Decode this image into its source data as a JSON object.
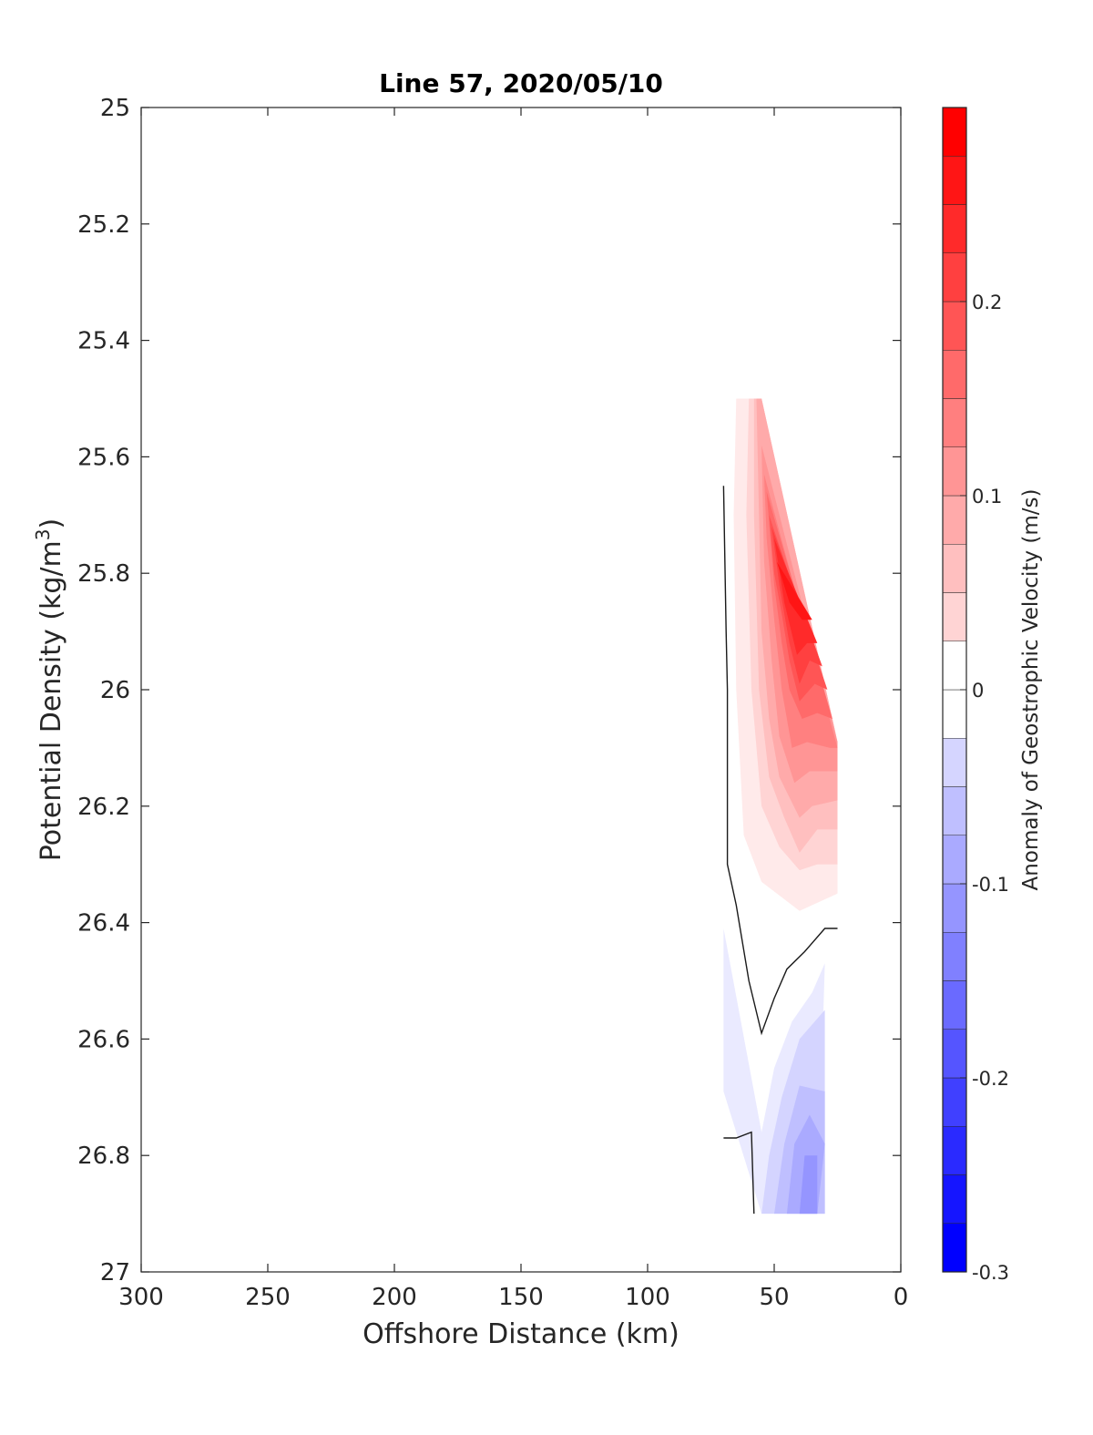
{
  "chart_data": {
    "type": "contourf",
    "title": "Line 57, 2020/05/10",
    "xlabel": "Offshore Distance (km)",
    "ylabel": "Potential Density (kg/m",
    "ylabel_sup": "3",
    "ylabel_tail": ")",
    "xlim": [
      300,
      0
    ],
    "x_reversed": true,
    "ylim": [
      25,
      27
    ],
    "y_reversed": true,
    "xticks": [
      300,
      250,
      200,
      150,
      100,
      50,
      0
    ],
    "xtick_labels": [
      "300",
      "250",
      "200",
      "150",
      "100",
      "50",
      "0"
    ],
    "yticks": [
      25,
      25.2,
      25.4,
      25.6,
      25.8,
      26,
      26.2,
      26.4,
      26.6,
      26.8,
      27
    ],
    "ytick_labels": [
      "25",
      "25.2",
      "25.4",
      "25.6",
      "25.8",
      "26",
      "26.2",
      "26.4",
      "26.6",
      "26.8",
      "27"
    ],
    "grid": false,
    "colorbar": {
      "label": "Anomaly of Geostrophic Velocity (m/s)",
      "range": [
        -0.3,
        0.3
      ],
      "level_step": 0.025,
      "ticks": [
        -0.3,
        -0.2,
        -0.1,
        0,
        0.1,
        0.2
      ],
      "tick_labels": [
        "-0.3",
        "-0.2",
        "-0.1",
        "0",
        "0.1",
        "0.2"
      ],
      "colormap": "blue-white-red",
      "negative_color": "#0000ff",
      "positive_color": "#ff0000",
      "zero_color": "#ffffff"
    },
    "positive_region": {
      "description_values": "layers of anomaly from 0 to about 0.28 m/s",
      "layers": [
        {
          "level": 0.025,
          "polygon": [
            [
              63,
              25.5
            ],
            [
              55,
              25.5
            ],
            [
              25,
              26.09
            ],
            [
              25,
              26.35
            ],
            [
              40,
              26.38
            ],
            [
              55,
              26.33
            ],
            [
              62,
              26.25
            ],
            [
              65,
              26.0
            ],
            [
              66,
              25.7
            ],
            [
              65,
              25.5
            ]
          ]
        },
        {
          "level": 0.05,
          "polygon": [
            [
              60,
              25.5
            ],
            [
              55,
              25.5
            ],
            [
              25,
              26.09
            ],
            [
              25,
              26.3
            ],
            [
              33,
              26.3
            ],
            [
              40,
              26.31
            ],
            [
              48,
              26.27
            ],
            [
              55,
              26.2
            ],
            [
              59,
              26.0
            ],
            [
              61,
              25.7
            ]
          ]
        },
        {
          "level": 0.075,
          "polygon": [
            [
              58,
              25.5
            ],
            [
              55,
              25.5
            ],
            [
              25,
              26.09
            ],
            [
              25,
              26.24
            ],
            [
              33,
              26.24
            ],
            [
              40,
              26.28
            ],
            [
              46,
              26.22
            ],
            [
              52,
              26.15
            ],
            [
              56,
              26.0
            ],
            [
              58,
              25.7
            ]
          ]
        },
        {
          "level": 0.1,
          "polygon": [
            [
              57,
              25.5
            ],
            [
              55,
              25.5
            ],
            [
              25,
              26.09
            ],
            [
              25,
              26.19
            ],
            [
              35,
              26.2
            ],
            [
              40,
              26.22
            ],
            [
              48,
              26.15
            ],
            [
              52,
              26.05
            ],
            [
              55,
              25.9
            ],
            [
              56,
              25.7
            ]
          ]
        },
        {
          "level": 0.125,
          "polygon": [
            [
              55,
              25.58
            ],
            [
              25,
              26.09
            ],
            [
              25,
              26.14
            ],
            [
              36,
              26.14
            ],
            [
              42,
              26.16
            ],
            [
              48,
              26.08
            ],
            [
              51,
              25.95
            ],
            [
              54,
              25.78
            ]
          ]
        },
        {
          "level": 0.15,
          "polygon": [
            [
              54,
              25.63
            ],
            [
              25,
              26.1
            ],
            [
              28,
              26.1
            ],
            [
              37,
              26.09
            ],
            [
              43,
              26.1
            ],
            [
              47,
              26.0
            ],
            [
              50,
              25.88
            ],
            [
              53,
              25.74
            ]
          ]
        },
        {
          "level": 0.175,
          "polygon": [
            [
              53,
              25.66
            ],
            [
              27,
              26.05
            ],
            [
              33,
              26.04
            ],
            [
              39,
              26.05
            ],
            [
              44,
              26.0
            ],
            [
              47,
              25.92
            ],
            [
              50,
              25.82
            ]
          ]
        },
        {
          "level": 0.2,
          "polygon": [
            [
              52,
              25.7
            ],
            [
              29,
              26.0
            ],
            [
              34,
              25.99
            ],
            [
              40,
              26.02
            ],
            [
              44,
              25.95
            ],
            [
              47,
              25.87
            ],
            [
              50,
              25.8
            ]
          ]
        },
        {
          "level": 0.225,
          "polygon": [
            [
              51,
              25.72
            ],
            [
              31,
              25.96
            ],
            [
              36,
              25.95
            ],
            [
              40,
              25.99
            ],
            [
              44,
              25.92
            ],
            [
              48,
              25.82
            ]
          ]
        },
        {
          "level": 0.25,
          "polygon": [
            [
              50,
              25.74
            ],
            [
              33,
              25.92
            ],
            [
              37,
              25.92
            ],
            [
              41,
              25.94
            ],
            [
              46,
              25.85
            ]
          ]
        },
        {
          "level": 0.275,
          "polygon": [
            [
              49,
              25.78
            ],
            [
              35,
              25.88
            ],
            [
              39,
              25.88
            ],
            [
              44,
              25.85
            ]
          ]
        }
      ]
    },
    "negative_region": {
      "layers": [
        {
          "level": -0.025,
          "polygon": [
            [
              70,
              26.41
            ],
            [
              70,
              26.69
            ],
            [
              55,
              26.9
            ],
            [
              33,
              26.9
            ],
            [
              30,
              26.47
            ],
            [
              35,
              26.52
            ],
            [
              43,
              26.57
            ],
            [
              50,
              26.65
            ],
            [
              55,
              26.76
            ]
          ]
        },
        {
          "level": -0.05,
          "polygon": [
            [
              55,
              26.9
            ],
            [
              52,
              26.8
            ],
            [
              47,
              26.7
            ],
            [
              40,
              26.6
            ],
            [
              30,
              26.55
            ],
            [
              30,
              26.9
            ]
          ]
        },
        {
          "level": -0.075,
          "polygon": [
            [
              50,
              26.9
            ],
            [
              46,
              26.78
            ],
            [
              40,
              26.68
            ],
            [
              30,
              26.69
            ],
            [
              30,
              26.9
            ]
          ]
        },
        {
          "level": -0.1,
          "polygon": [
            [
              45,
              26.9
            ],
            [
              42,
              26.78
            ],
            [
              36,
              26.73
            ],
            [
              30,
              26.78
            ],
            [
              33,
              26.9
            ]
          ]
        },
        {
          "level": -0.125,
          "polygon": [
            [
              40,
              26.9
            ],
            [
              38,
              26.8
            ],
            [
              33,
              26.8
            ],
            [
              33,
              26.9
            ]
          ]
        }
      ]
    },
    "zero_contour_lines": [
      [
        [
          70,
          25.65
        ],
        [
          69,
          25.9
        ],
        [
          68.5,
          26.0
        ],
        [
          68.5,
          26.3
        ],
        [
          65,
          26.37
        ],
        [
          60,
          26.5
        ],
        [
          55,
          26.59
        ],
        [
          50,
          26.53
        ],
        [
          45,
          26.48
        ],
        [
          38,
          26.45
        ],
        [
          30,
          26.41
        ],
        [
          25,
          26.41
        ]
      ],
      [
        [
          70,
          26.77
        ],
        [
          65,
          26.77
        ],
        [
          59,
          26.76
        ],
        [
          58,
          26.9
        ]
      ]
    ],
    "data_extent_x": [
      25,
      70
    ],
    "data_extent_y": [
      25.5,
      26.9
    ]
  }
}
